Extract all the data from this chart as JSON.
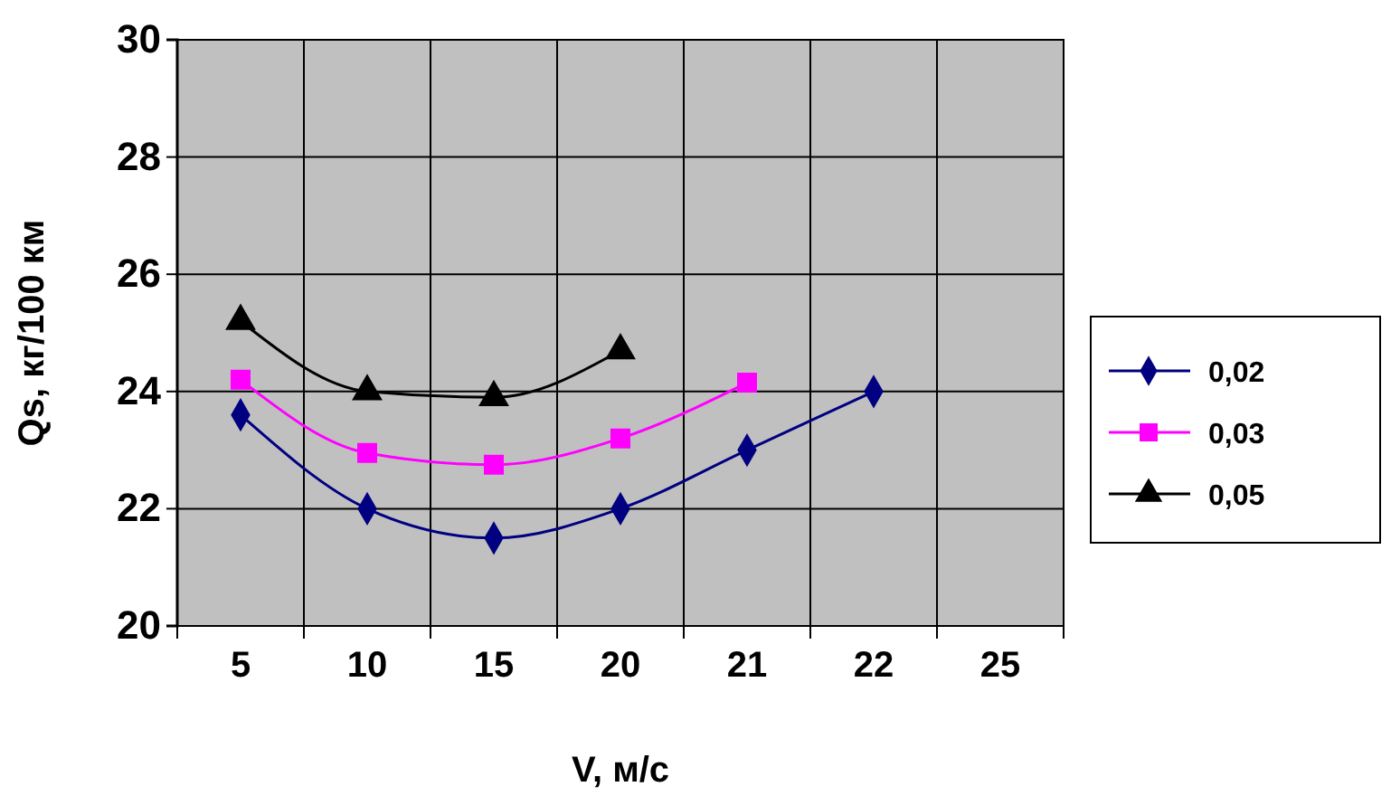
{
  "chart_data": {
    "type": "line",
    "xlabel": "V, м/с",
    "ylabel": "Qs, кг/100 км",
    "categories": [
      "5",
      "10",
      "15",
      "20",
      "21",
      "22",
      "25"
    ],
    "series": [
      {
        "name": "0,02",
        "color": "#000080",
        "marker": "diamond",
        "values": [
          23.6,
          22.0,
          21.5,
          22.0,
          23.0,
          24.0,
          null
        ]
      },
      {
        "name": "0,03",
        "color": "#ff00ff",
        "marker": "square",
        "values": [
          24.2,
          22.95,
          22.75,
          23.2,
          24.15,
          null,
          null
        ]
      },
      {
        "name": "0,05",
        "color": "#000000",
        "marker": "triangle",
        "values": [
          25.2,
          24.0,
          23.9,
          24.7,
          null,
          null,
          null
        ]
      }
    ],
    "ylim": [
      20,
      30
    ],
    "yticks": [
      20,
      22,
      24,
      26,
      28,
      30
    ],
    "grid": true,
    "legend": "right"
  }
}
